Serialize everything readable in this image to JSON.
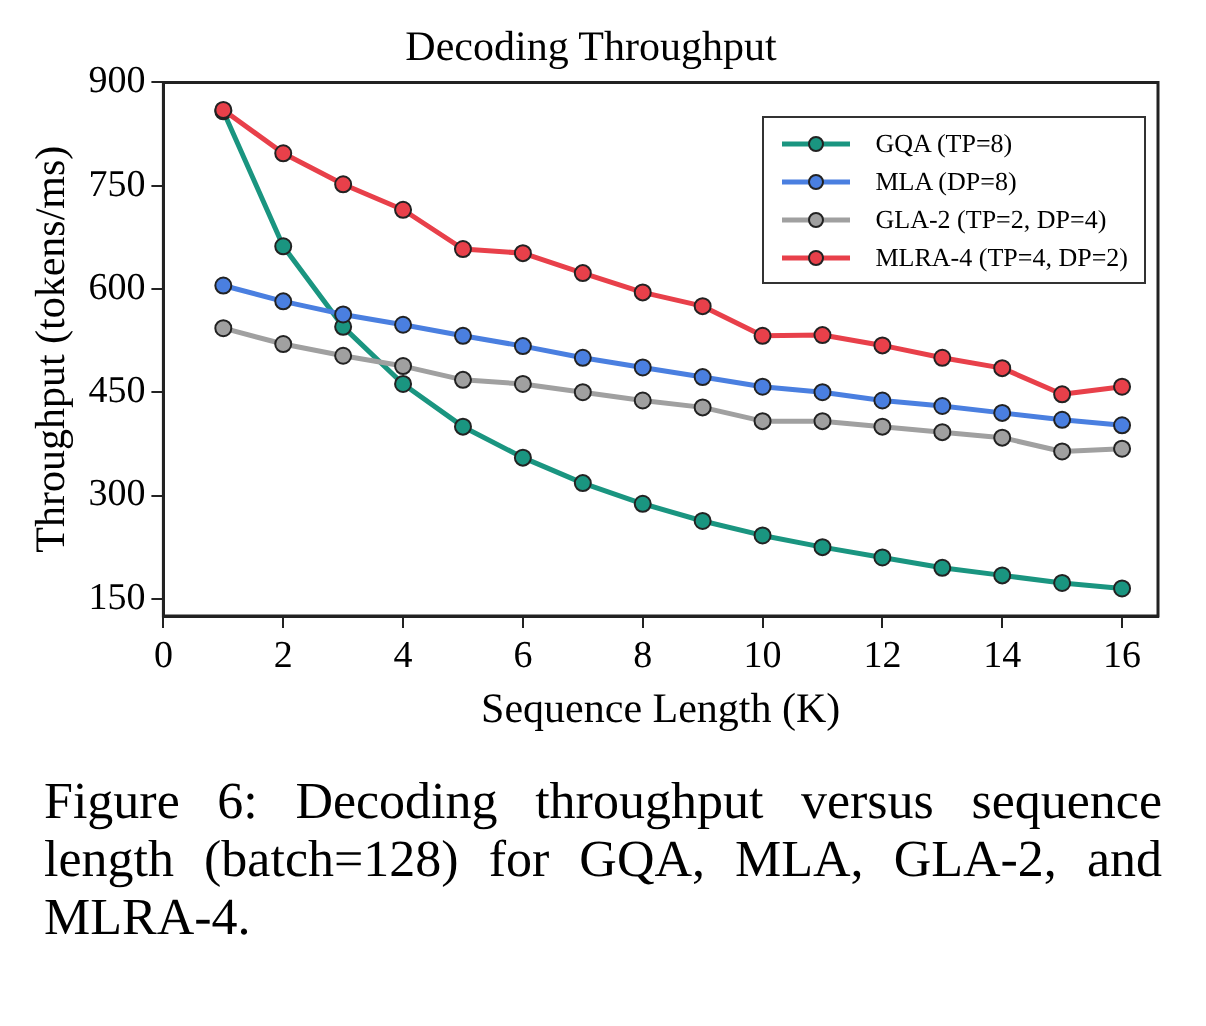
{
  "chart_data": {
    "type": "line",
    "title": "Decoding Throughput",
    "xlabel": "Sequence Length (K)",
    "ylabel": "Throughput (tokens/ms)",
    "x": [
      1,
      2,
      3,
      4,
      5,
      6,
      7,
      8,
      9,
      10,
      11,
      12,
      13,
      14,
      15,
      16
    ],
    "xlim": [
      0,
      16.6
    ],
    "xticks": [
      0,
      2,
      4,
      6,
      8,
      10,
      12,
      14,
      16
    ],
    "ylim": [
      125,
      900
    ],
    "yticks": [
      150,
      300,
      450,
      600,
      750,
      900
    ],
    "grid": false,
    "legend": "top right",
    "marker": "circle",
    "line_style": "solid",
    "annotations": [
      "Figure 6: Decoding throughput versus sequence length (batch=128) for GQA, MLA, GLA-2, and MLRA-4."
    ],
    "series": [
      {
        "name": "GQA (TP=8)",
        "color": "#1a9580",
        "values": [
          858,
          662,
          545,
          462,
          400,
          355,
          318,
          288,
          263,
          242,
          225,
          210,
          195,
          184,
          173,
          165
        ]
      },
      {
        "name": "MLA (DP=8)",
        "color": "#4a7fe0",
        "values": [
          605,
          582,
          563,
          548,
          532,
          517,
          500,
          486,
          472,
          458,
          450,
          438,
          430,
          420,
          410,
          402
        ]
      },
      {
        "name": "GLA-2 (TP=2, DP=4)",
        "color": "#a0a0a0",
        "values": [
          543,
          520,
          503,
          488,
          468,
          462,
          450,
          438,
          428,
          408,
          408,
          400,
          392,
          384,
          364,
          368
        ]
      },
      {
        "name": "MLRA-4 (TP=4, DP=2)",
        "color": "#e8404a",
        "values": [
          860,
          797,
          752,
          715,
          658,
          652,
          623,
          595,
          575,
          532,
          533,
          518,
          500,
          485,
          447,
          458
        ]
      }
    ]
  }
}
